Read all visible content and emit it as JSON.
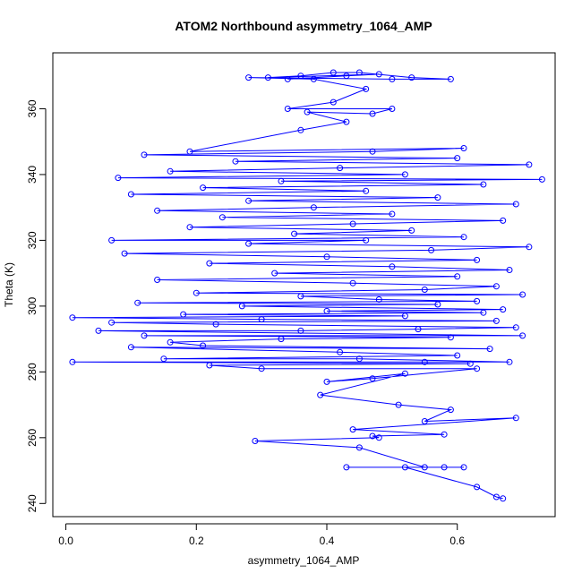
{
  "chart_data": {
    "type": "scatter",
    "title": "ATOM2 Northbound asymmetry_1064_AMP",
    "xlabel": "asymmetry_1064_AMP",
    "ylabel": "Theta (K)",
    "xlim": [
      -0.02,
      0.75
    ],
    "ylim": [
      236,
      377
    ],
    "x_ticks": [
      0.0,
      0.2,
      0.4,
      0.6
    ],
    "y_ticks": [
      240,
      260,
      280,
      300,
      320,
      340,
      360
    ],
    "grid": false,
    "legend": "none",
    "marker": "open-circle",
    "connected": true,
    "color": "#0000ff",
    "series": [
      {
        "values": [
          [
            0.67,
            241.5
          ],
          [
            0.66,
            242.0
          ],
          [
            0.63,
            245.0
          ],
          [
            0.52,
            251.0
          ],
          [
            0.43,
            251.0
          ],
          [
            0.61,
            251.0
          ],
          [
            0.58,
            251.0
          ],
          [
            0.55,
            251.0
          ],
          [
            0.45,
            257.0
          ],
          [
            0.29,
            259.0
          ],
          [
            0.48,
            260.0
          ],
          [
            0.47,
            260.5
          ],
          [
            0.58,
            261.0
          ],
          [
            0.44,
            262.5
          ],
          [
            0.69,
            266.0
          ],
          [
            0.55,
            265.0
          ],
          [
            0.59,
            268.5
          ],
          [
            0.51,
            270.0
          ],
          [
            0.39,
            273.0
          ],
          [
            0.52,
            279.5
          ],
          [
            0.4,
            277.0
          ],
          [
            0.47,
            278.0
          ],
          [
            0.63,
            281.0
          ],
          [
            0.3,
            281.0
          ],
          [
            0.22,
            282.0
          ],
          [
            0.62,
            282.5
          ],
          [
            0.01,
            283.0
          ],
          [
            0.55,
            283.0
          ],
          [
            0.68,
            283.0
          ],
          [
            0.45,
            284.0
          ],
          [
            0.15,
            284.0
          ],
          [
            0.6,
            285.0
          ],
          [
            0.42,
            286.0
          ],
          [
            0.1,
            287.5
          ],
          [
            0.65,
            287.0
          ],
          [
            0.21,
            288.0
          ],
          [
            0.16,
            289.0
          ],
          [
            0.33,
            290.0
          ],
          [
            0.59,
            290.5
          ],
          [
            0.12,
            291.0
          ],
          [
            0.7,
            291.0
          ],
          [
            0.05,
            292.5
          ],
          [
            0.36,
            292.5
          ],
          [
            0.54,
            293.0
          ],
          [
            0.69,
            293.5
          ],
          [
            0.23,
            294.5
          ],
          [
            0.07,
            295.0
          ],
          [
            0.66,
            295.5
          ],
          [
            0.3,
            296.0
          ],
          [
            0.01,
            296.5
          ],
          [
            0.52,
            297.0
          ],
          [
            0.18,
            297.5
          ],
          [
            0.64,
            298.0
          ],
          [
            0.4,
            298.5
          ],
          [
            0.67,
            299.0
          ],
          [
            0.27,
            300.0
          ],
          [
            0.57,
            300.5
          ],
          [
            0.11,
            301.0
          ],
          [
            0.63,
            301.5
          ],
          [
            0.48,
            302.0
          ],
          [
            0.36,
            303.0
          ],
          [
            0.7,
            303.5
          ],
          [
            0.2,
            304.0
          ],
          [
            0.55,
            305.0
          ],
          [
            0.66,
            306.0
          ],
          [
            0.44,
            307.0
          ],
          [
            0.14,
            308.0
          ],
          [
            0.6,
            309.0
          ],
          [
            0.32,
            310.0
          ],
          [
            0.68,
            311.0
          ],
          [
            0.5,
            312.0
          ],
          [
            0.22,
            313.0
          ],
          [
            0.63,
            314.0
          ],
          [
            0.4,
            315.0
          ],
          [
            0.09,
            316.0
          ],
          [
            0.56,
            317.0
          ],
          [
            0.71,
            318.0
          ],
          [
            0.28,
            319.0
          ],
          [
            0.46,
            320.0
          ],
          [
            0.07,
            320.0
          ],
          [
            0.61,
            321.0
          ],
          [
            0.35,
            322.0
          ],
          [
            0.53,
            323.0
          ],
          [
            0.19,
            324.0
          ],
          [
            0.44,
            325.0
          ],
          [
            0.67,
            326.0
          ],
          [
            0.24,
            327.0
          ],
          [
            0.5,
            328.0
          ],
          [
            0.14,
            329.0
          ],
          [
            0.38,
            330.0
          ],
          [
            0.69,
            331.0
          ],
          [
            0.28,
            332.0
          ],
          [
            0.57,
            333.0
          ],
          [
            0.1,
            334.0
          ],
          [
            0.46,
            335.0
          ],
          [
            0.21,
            336.0
          ],
          [
            0.64,
            337.0
          ],
          [
            0.33,
            338.0
          ],
          [
            0.73,
            338.5
          ],
          [
            0.08,
            339.0
          ],
          [
            0.52,
            340.0
          ],
          [
            0.16,
            341.0
          ],
          [
            0.42,
            342.0
          ],
          [
            0.71,
            343.0
          ],
          [
            0.26,
            344.0
          ],
          [
            0.6,
            345.0
          ],
          [
            0.12,
            346.0
          ],
          [
            0.47,
            347.0
          ],
          [
            0.61,
            348.0
          ],
          [
            0.19,
            347.0
          ],
          [
            0.36,
            353.5
          ],
          [
            0.43,
            356.0
          ],
          [
            0.37,
            359.0
          ],
          [
            0.47,
            358.5
          ],
          [
            0.5,
            360.0
          ],
          [
            0.34,
            360.0
          ],
          [
            0.41,
            362.0
          ],
          [
            0.46,
            366.0
          ],
          [
            0.38,
            369.0
          ],
          [
            0.28,
            369.5
          ],
          [
            0.5,
            369.0
          ],
          [
            0.59,
            369.0
          ],
          [
            0.53,
            369.5
          ],
          [
            0.45,
            371.0
          ],
          [
            0.41,
            371.0
          ],
          [
            0.36,
            370.0
          ],
          [
            0.31,
            369.5
          ],
          [
            0.48,
            370.5
          ],
          [
            0.43,
            370.0
          ],
          [
            0.34,
            369.0
          ]
        ]
      }
    ]
  }
}
